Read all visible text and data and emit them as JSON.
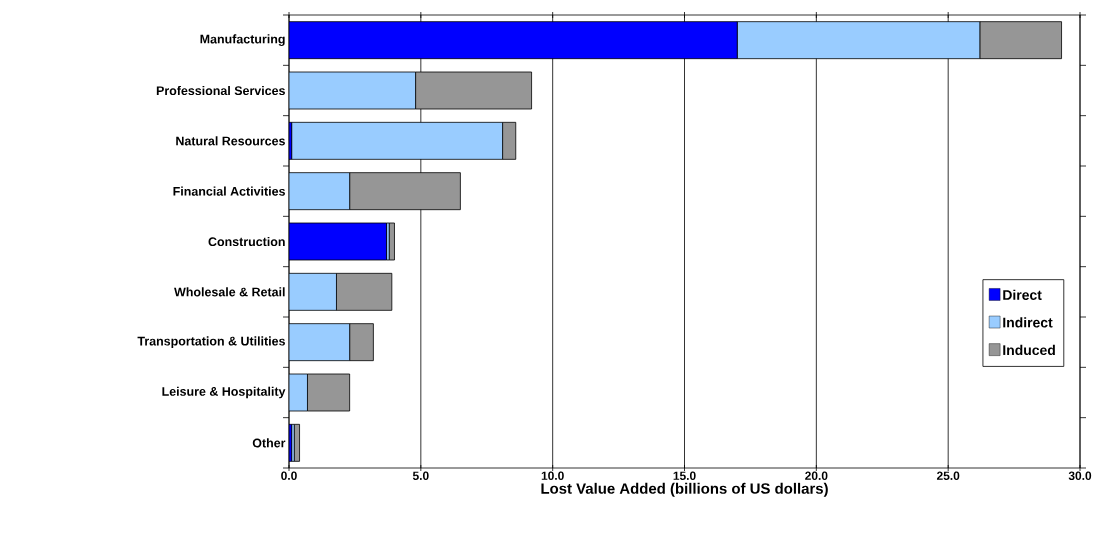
{
  "chart_data": {
    "type": "bar",
    "orientation": "horizontal",
    "stacked": true,
    "xlabel": "Lost Value Added (billions of US dollars)",
    "categories": [
      "Manufacturing",
      "Professional Services",
      "Natural Resources",
      "Financial Activities",
      "Construction",
      "Wholesale & Retail",
      "Transportation & Utilities",
      "Leisure & Hospitality",
      "Other"
    ],
    "series": [
      {
        "name": "Direct",
        "color": "#0000ff",
        "values": [
          17.0,
          0,
          0.1,
          0,
          3.7,
          0,
          0,
          0,
          0.1
        ]
      },
      {
        "name": "Indirect",
        "color": "#99ccff",
        "values": [
          9.2,
          4.8,
          8.0,
          2.3,
          0.1,
          1.8,
          2.3,
          0.7,
          0.1
        ]
      },
      {
        "name": "Induced",
        "color": "#969696",
        "values": [
          3.1,
          4.4,
          0.5,
          4.2,
          0.2,
          2.1,
          0.9,
          1.6,
          0.2
        ]
      }
    ],
    "xlim": [
      0,
      30
    ],
    "xticks": [
      {
        "value": 0,
        "label": "0.0"
      },
      {
        "value": 5,
        "label": "5.0"
      },
      {
        "value": 10,
        "label": "10.0"
      },
      {
        "value": 15,
        "label": "15.0"
      },
      {
        "value": 20,
        "label": "20.0"
      },
      {
        "value": 25,
        "label": "25.0"
      },
      {
        "value": 30,
        "label": "30.0"
      }
    ],
    "grid": "x",
    "legend": "right"
  }
}
